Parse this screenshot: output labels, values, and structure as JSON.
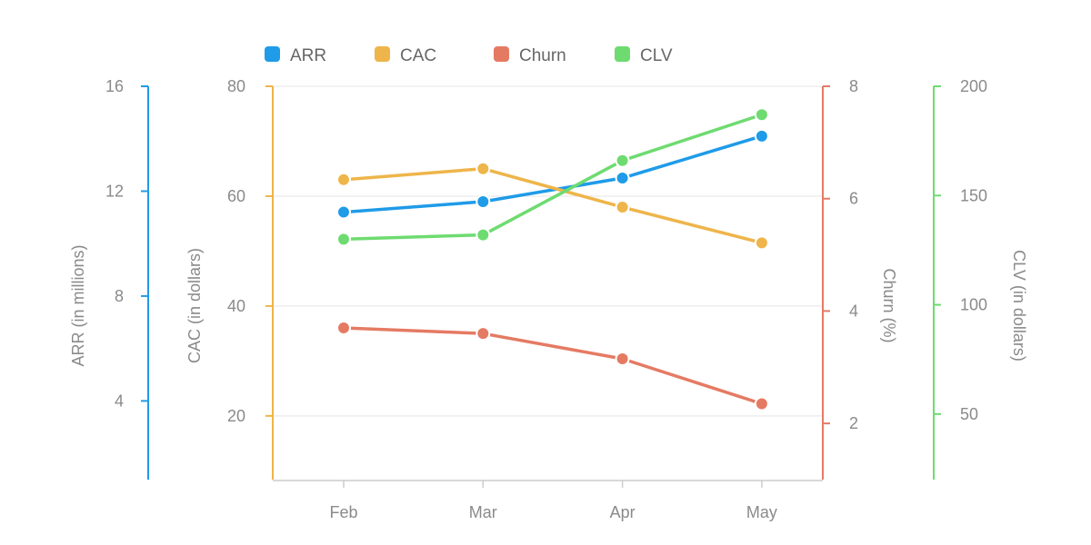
{
  "chart_data": {
    "type": "line",
    "categories": [
      "Feb",
      "Mar",
      "Apr",
      "May"
    ],
    "grid": true,
    "legend_position": "top",
    "series": [
      {
        "name": "ARR",
        "axis": "arr",
        "color": "#1f9be8",
        "values": [
          11.2,
          11.6,
          12.5,
          14.1
        ]
      },
      {
        "name": "CAC",
        "axis": "cac",
        "color": "#eeb54a",
        "values": [
          63,
          65,
          58,
          51.5
        ]
      },
      {
        "name": "Churn",
        "axis": "churn",
        "color": "#e57a63",
        "values": [
          3.7,
          3.6,
          3.15,
          2.35
        ]
      },
      {
        "name": "CLV",
        "axis": "clv",
        "color": "#6edb70",
        "values": [
          130,
          132,
          166,
          187
        ]
      }
    ],
    "axes": {
      "arr": {
        "label": "ARR (in millions)",
        "ticks": [
          4,
          8,
          12,
          16
        ],
        "range": [
          1.0,
          16.0
        ],
        "color": "#1f9be8"
      },
      "cac": {
        "label": "CAC (in dollars)",
        "ticks": [
          20,
          40,
          60,
          80
        ],
        "range": [
          8.4,
          80.0
        ],
        "color": "#eeb54a"
      },
      "churn": {
        "label": "Churn (%)",
        "ticks": [
          2,
          4,
          6,
          8
        ],
        "range": [
          1.0,
          8.0
        ],
        "color": "#e57a63"
      },
      "clv": {
        "label": "CLV (in dollars)",
        "ticks": [
          50,
          100,
          150,
          200
        ],
        "range": [
          20,
          200
        ],
        "color": "#6edb70"
      }
    },
    "x_axis_color": "#cccccc",
    "grid_color": "#eeeeee"
  }
}
